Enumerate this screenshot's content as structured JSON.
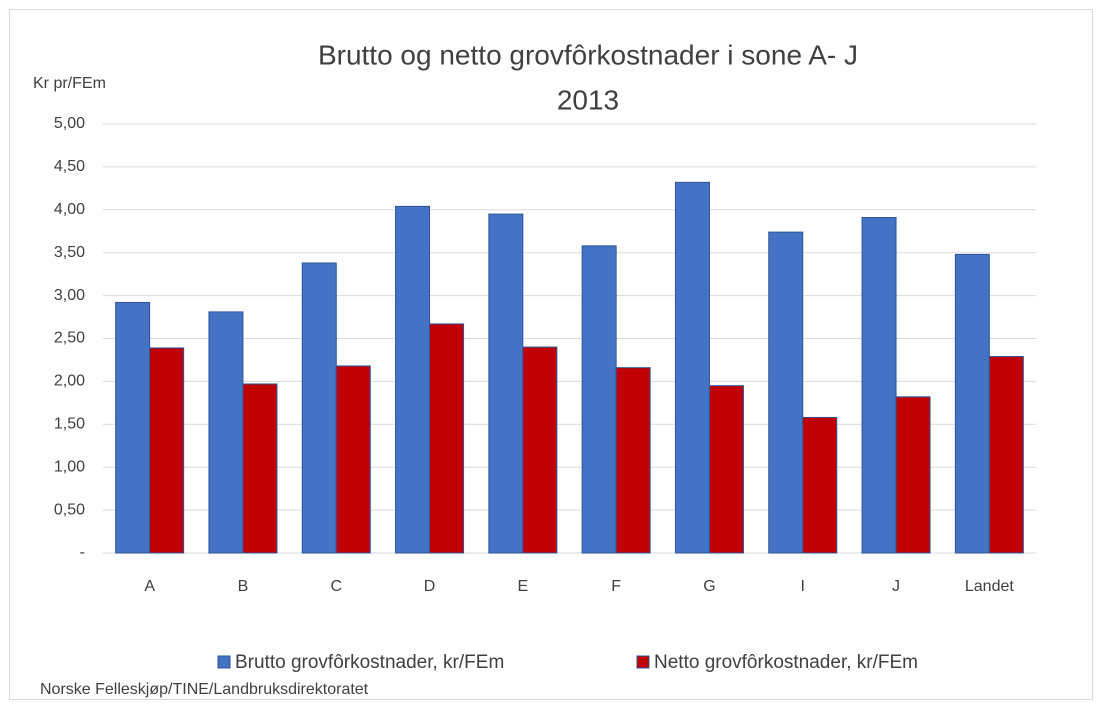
{
  "chart_data": {
    "type": "bar",
    "title": [
      "Brutto og netto grovfôrkostnader i sone A- J",
      "2013"
    ],
    "y_label": "Kr pr/FEm",
    "source": "Norske Felleskjøp/TINE/Landbruksdirektoratet",
    "categories": [
      "A",
      "B",
      "C",
      "D",
      "E",
      "F",
      "G",
      "I",
      "J",
      "Landet"
    ],
    "series": [
      {
        "name": "Brutto grovfôrkostnader, kr/FEm",
        "color": "#4472c4",
        "values": [
          2.92,
          2.81,
          3.38,
          4.04,
          3.95,
          3.58,
          4.32,
          3.74,
          3.91,
          3.48
        ]
      },
      {
        "name": "Netto grovfôrkostnader, kr/FEm",
        "color": "#c00000",
        "values": [
          2.39,
          1.97,
          2.18,
          2.67,
          2.4,
          2.16,
          1.95,
          1.58,
          1.82,
          2.29
        ]
      }
    ],
    "ylim": [
      0,
      5
    ],
    "yticks": [
      {
        "value": 0,
        "label": "-"
      },
      {
        "value": 0.5,
        "label": "0,50"
      },
      {
        "value": 1,
        "label": "1,00"
      },
      {
        "value": 1.5,
        "label": "1,50"
      },
      {
        "value": 2,
        "label": "2,00"
      },
      {
        "value": 2.5,
        "label": "2,50"
      },
      {
        "value": 3,
        "label": "3,00"
      },
      {
        "value": 3.5,
        "label": "3,50"
      },
      {
        "value": 4,
        "label": "4,00"
      },
      {
        "value": 4.5,
        "label": "4,50"
      },
      {
        "value": 5,
        "label": "5,00"
      }
    ],
    "grid": true,
    "legend": "bottom"
  }
}
